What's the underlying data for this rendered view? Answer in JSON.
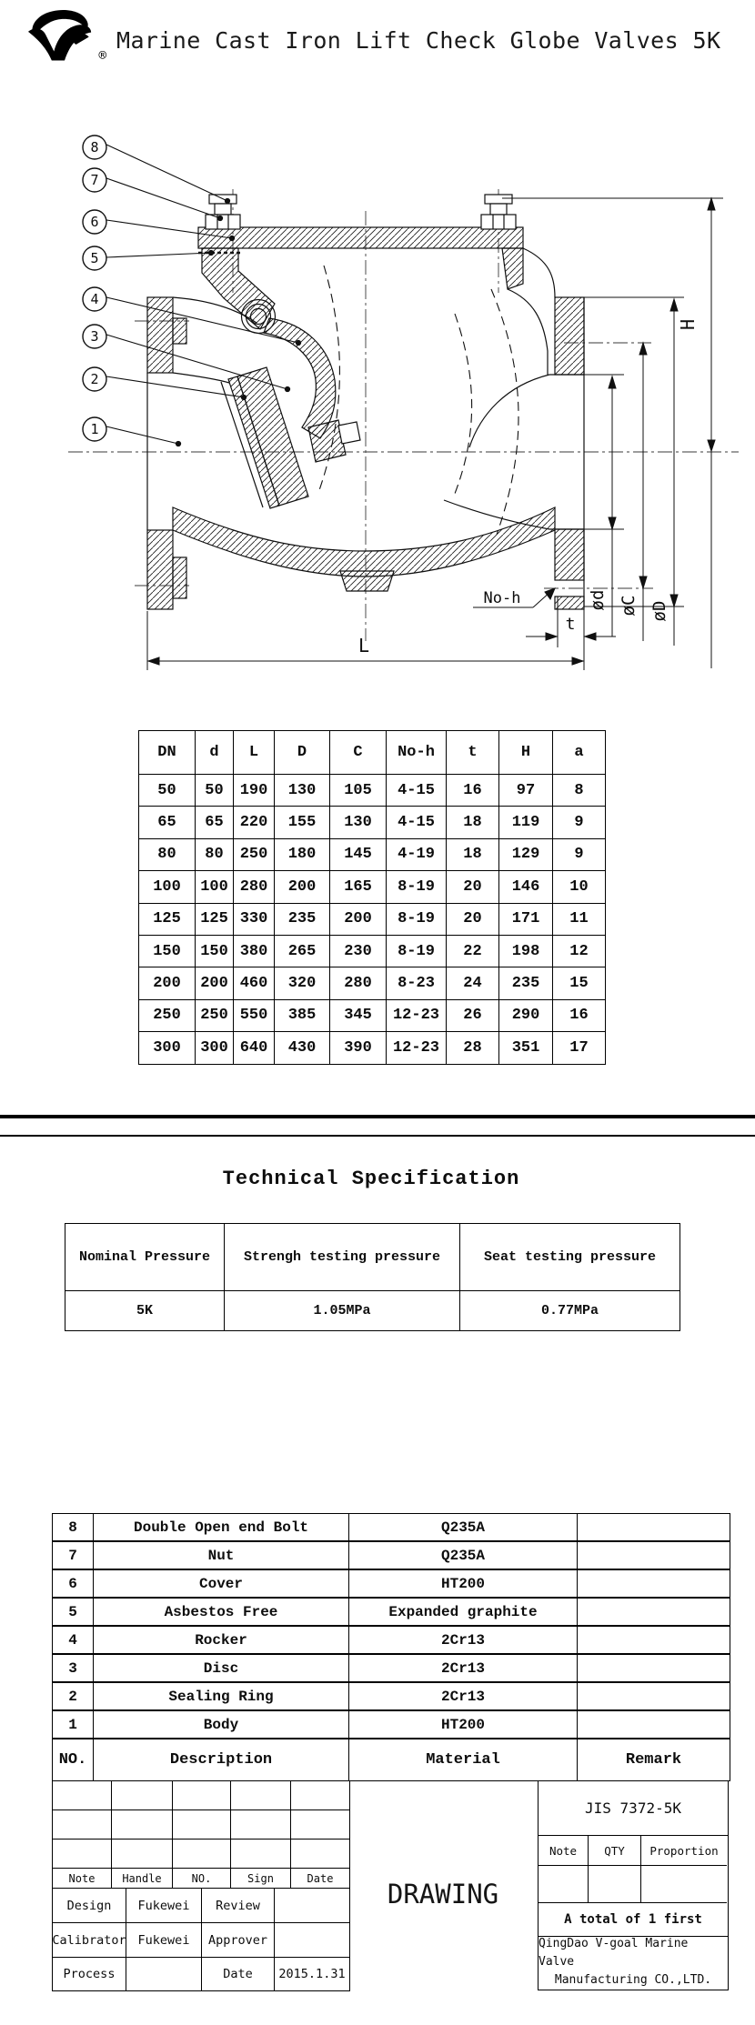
{
  "header": {
    "title": "Marine Cast Iron Lift Check Globe Valves 5K",
    "registered_mark": "®"
  },
  "drawing": {
    "callouts": [
      "8",
      "7",
      "6",
      "5",
      "4",
      "3",
      "2",
      "1"
    ],
    "labels": {
      "h": "H",
      "d_small": "ød",
      "c_mid": "øC",
      "d_big": "øD",
      "l": "L",
      "t": "t",
      "no_h": "No-h"
    }
  },
  "dimension_table": {
    "headers": [
      "DN",
      "d",
      "L",
      "D",
      "C",
      "No-h",
      "t",
      "H",
      "a"
    ],
    "rows": [
      [
        "50",
        "50",
        "190",
        "130",
        "105",
        "4-15",
        "16",
        "97",
        "8"
      ],
      [
        "65",
        "65",
        "220",
        "155",
        "130",
        "4-15",
        "18",
        "119",
        "9"
      ],
      [
        "80",
        "80",
        "250",
        "180",
        "145",
        "4-19",
        "18",
        "129",
        "9"
      ],
      [
        "100",
        "100",
        "280",
        "200",
        "165",
        "8-19",
        "20",
        "146",
        "10"
      ],
      [
        "125",
        "125",
        "330",
        "235",
        "200",
        "8-19",
        "20",
        "171",
        "11"
      ],
      [
        "150",
        "150",
        "380",
        "265",
        "230",
        "8-19",
        "22",
        "198",
        "12"
      ],
      [
        "200",
        "200",
        "460",
        "320",
        "280",
        "8-23",
        "24",
        "235",
        "15"
      ],
      [
        "250",
        "250",
        "550",
        "385",
        "345",
        "12-23",
        "26",
        "290",
        "16"
      ],
      [
        "300",
        "300",
        "640",
        "430",
        "390",
        "12-23",
        "28",
        "351",
        "17"
      ]
    ]
  },
  "technical_specification": {
    "title": "Technical Specification",
    "headers": [
      "Nominal Pressure",
      "Strengh testing pressure",
      "Seat testing pressure"
    ],
    "values": [
      "5K",
      "1.05MPa",
      "0.77MPa"
    ]
  },
  "parts_list": {
    "rows": [
      [
        "8",
        "Double Open end Bolt",
        "Q235A",
        ""
      ],
      [
        "7",
        "Nut",
        "Q235A",
        ""
      ],
      [
        "6",
        "Cover",
        "HT200",
        ""
      ],
      [
        "5",
        "Asbestos Free",
        "Expanded graphite",
        ""
      ],
      [
        "4",
        "Rocker",
        "2Cr13",
        ""
      ],
      [
        "3",
        "Disc",
        "2Cr13",
        ""
      ],
      [
        "2",
        "Sealing Ring",
        "2Cr13",
        ""
      ],
      [
        "1",
        "Body",
        "HT200",
        ""
      ]
    ],
    "footer": [
      "NO.",
      "Description",
      "Material",
      "Remark"
    ]
  },
  "title_block": {
    "approval_headers": [
      "Note",
      "Handle",
      "NO.",
      "Sign",
      "Date"
    ],
    "signature_rows": [
      [
        "Design",
        "Fukewei",
        "Review",
        ""
      ],
      [
        "Calibrator",
        "Fukewei",
        "Approver",
        ""
      ],
      [
        "Process",
        "",
        "Date",
        "2015.1.31"
      ]
    ],
    "drawing_label": "DRAWING",
    "standard": "JIS 7372-5K",
    "qty_headers": [
      "Note",
      "QTY",
      "Proportion"
    ],
    "total_note": "A total of 1 first",
    "company": [
      "QingDao V-goal Marine Valve",
      "Manufacturing CO.,LTD."
    ]
  }
}
